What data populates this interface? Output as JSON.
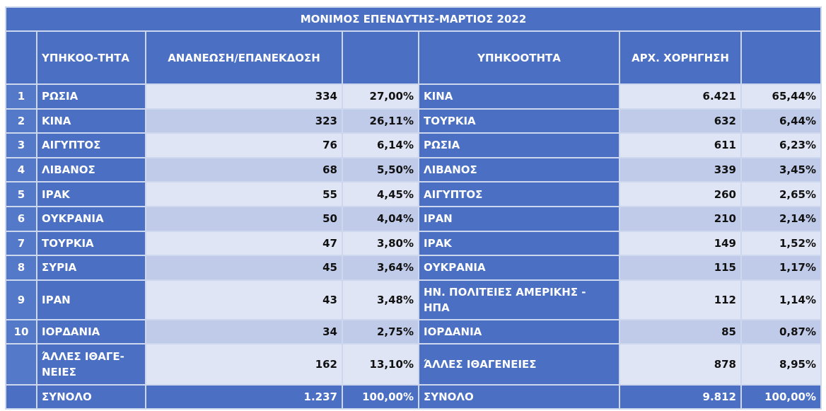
{
  "title": "ΜΟΝΙΜΟΣ ΕΠΕΝΔΥΤΗΣ-ΜΑΡΤΙΟΣ 2022",
  "headers": {
    "left_country": "ΥΠΗΚΟΟ-ΤΗΤΑ",
    "left_value": "ΑΝΑΝΕΩΣΗ/ΕΠΑΝΕΚΔΟΣΗ",
    "left_pct": "",
    "right_country": "ΥΠΗΚΟΟΤΗΤΑ",
    "right_value": "ΑΡΧ. ΧΟΡΗΓΗΣΗ",
    "right_pct": ""
  },
  "rows": [
    {
      "idx": "1",
      "lc": "ΡΩΣΙΑ",
      "lv": "334",
      "lp": "27,00%",
      "rc": "ΚΙΝΑ",
      "rv": "6.421",
      "rp": "65,44%"
    },
    {
      "idx": "2",
      "lc": "ΚΙΝΑ",
      "lv": "323",
      "lp": "26,11%",
      "rc": "ΤΟΥΡΚΙΑ",
      "rv": "632",
      "rp": "6,44%"
    },
    {
      "idx": "3",
      "lc": "ΑΙΓΥΠΤΟΣ",
      "lv": "76",
      "lp": "6,14%",
      "rc": "ΡΩΣΙΑ",
      "rv": "611",
      "rp": "6,23%"
    },
    {
      "idx": "4",
      "lc": "ΛΙΒΑΝΟΣ",
      "lv": "68",
      "lp": "5,50%",
      "rc": "ΛΙΒΑΝΟΣ",
      "rv": "339",
      "rp": "3,45%"
    },
    {
      "idx": "5",
      "lc": "ΙΡΑΚ",
      "lv": "55",
      "lp": "4,45%",
      "rc": "ΑΙΓΥΠΤΟΣ",
      "rv": "260",
      "rp": "2,65%"
    },
    {
      "idx": "6",
      "lc": "ΟΥΚΡΑΝΙΑ",
      "lv": "50",
      "lp": "4,04%",
      "rc": "ΙΡΑΝ",
      "rv": "210",
      "rp": "2,14%"
    },
    {
      "idx": "7",
      "lc": "ΤΟΥΡΚΙΑ",
      "lv": "47",
      "lp": "3,80%",
      "rc": "ΙΡΑΚ",
      "rv": "149",
      "rp": "1,52%"
    },
    {
      "idx": "8",
      "lc": "ΣΥΡΙΑ",
      "lv": "45",
      "lp": "3,64%",
      "rc": "ΟΥΚΡΑΝΙΑ",
      "rv": "115",
      "rp": "1,17%"
    },
    {
      "idx": "9",
      "lc": "ΙΡΑΝ",
      "lv": "43",
      "lp": "3,48%",
      "rc": "ΗΝ. ΠΟΛΙΤΕΙΕΣ ΑΜΕΡΙΚΗΣ - ΗΠΑ",
      "rv": "112",
      "rp": "1,14%"
    },
    {
      "idx": "10",
      "lc": "ΙΟΡΔΑΝΙΑ",
      "lv": "34",
      "lp": "2,75%",
      "rc": "ΙΟΡΔΑΝΙΑ",
      "rv": "85",
      "rp": "0,87%"
    }
  ],
  "other": {
    "lc": "ΆΛΛΕΣ ΙΘΑΓΕ-ΝΕΙΕΣ",
    "lv": "162",
    "lp": "13,10%",
    "rc": "ΆΛΛΕΣ ΙΘΑΓΕΝΕΙΕΣ",
    "rv": "878",
    "rp": "8,95%"
  },
  "total": {
    "lc": "ΣΥΝΟΛΟ",
    "lv": "1.237",
    "lp": "100,00%",
    "rc": "ΣΥΝΟΛΟ",
    "rv": "9.812",
    "rp": "100,00%"
  }
}
